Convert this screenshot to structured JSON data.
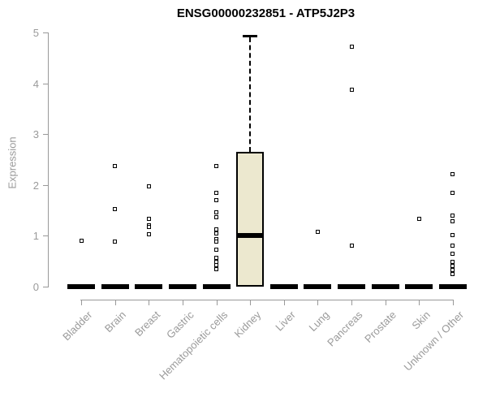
{
  "colors": {
    "box_fill": "#ece8cf",
    "box_border": "#000000",
    "axis_gray": "#999999",
    "title_color": "#000000"
  },
  "chart_data": {
    "type": "boxplot",
    "title": "ENSG00000232851 - ATP5J2P3",
    "xlabel": "",
    "ylabel": "Expression",
    "ylim": [
      0,
      5
    ],
    "yticks": [
      0,
      1,
      2,
      3,
      4,
      5
    ],
    "grid": false,
    "legend": "none",
    "categories": [
      "Bladder",
      "Brain",
      "Breast",
      "Gastric",
      "Hematopoietic cells",
      "Kidney",
      "Liver",
      "Lung",
      "Pancreas",
      "Prostate",
      "Skin",
      "Unknown / Other"
    ],
    "boxes": [
      {
        "category": "Bladder",
        "q1": 0,
        "median": 0,
        "q3": 0,
        "whisker_low": 0,
        "whisker_high": 0,
        "points": [
          0.9
        ]
      },
      {
        "category": "Brain",
        "q1": 0,
        "median": 0,
        "q3": 0,
        "whisker_low": 0,
        "whisker_high": 0,
        "points": [
          2.38,
          1.52,
          0.88
        ]
      },
      {
        "category": "Breast",
        "q1": 0,
        "median": 0,
        "q3": 0,
        "whisker_low": 0,
        "whisker_high": 0,
        "points": [
          1.97,
          1.33,
          1.21,
          1.17,
          1.03
        ]
      },
      {
        "category": "Gastric",
        "q1": 0,
        "median": 0,
        "q3": 0,
        "whisker_low": 0,
        "whisker_high": 0,
        "points": []
      },
      {
        "category": "Hematopoietic cells",
        "q1": 0,
        "median": 0,
        "q3": 0,
        "whisker_low": 0,
        "whisker_high": 0,
        "points": [
          2.37,
          1.84,
          1.7,
          1.46,
          1.37,
          1.12,
          1.04,
          0.93,
          0.88,
          0.73,
          0.56,
          0.48,
          0.42,
          0.34
        ]
      },
      {
        "category": "Kidney",
        "q1": 0,
        "median": 1.0,
        "q3": 2.65,
        "whisker_low": 0,
        "whisker_high": 4.95,
        "points": []
      },
      {
        "category": "Liver",
        "q1": 0,
        "median": 0,
        "q3": 0,
        "whisker_low": 0,
        "whisker_high": 0,
        "points": []
      },
      {
        "category": "Lung",
        "q1": 0,
        "median": 0,
        "q3": 0,
        "whisker_low": 0,
        "whisker_high": 0,
        "points": [
          1.08
        ]
      },
      {
        "category": "Pancreas",
        "q1": 0,
        "median": 0,
        "q3": 0,
        "whisker_low": 0,
        "whisker_high": 0,
        "points": [
          4.72,
          3.88,
          0.8
        ]
      },
      {
        "category": "Prostate",
        "q1": 0,
        "median": 0,
        "q3": 0,
        "whisker_low": 0,
        "whisker_high": 0,
        "points": []
      },
      {
        "category": "Skin",
        "q1": 0,
        "median": 0,
        "q3": 0,
        "whisker_low": 0,
        "whisker_high": 0,
        "points": [
          1.34
        ]
      },
      {
        "category": "Unknown / Other",
        "q1": 0,
        "median": 0,
        "q3": 0,
        "whisker_low": 0,
        "whisker_high": 0,
        "points": [
          2.22,
          1.84,
          1.4,
          1.28,
          1.02,
          0.8,
          0.64,
          0.48,
          0.4,
          0.32,
          0.24
        ]
      }
    ]
  }
}
